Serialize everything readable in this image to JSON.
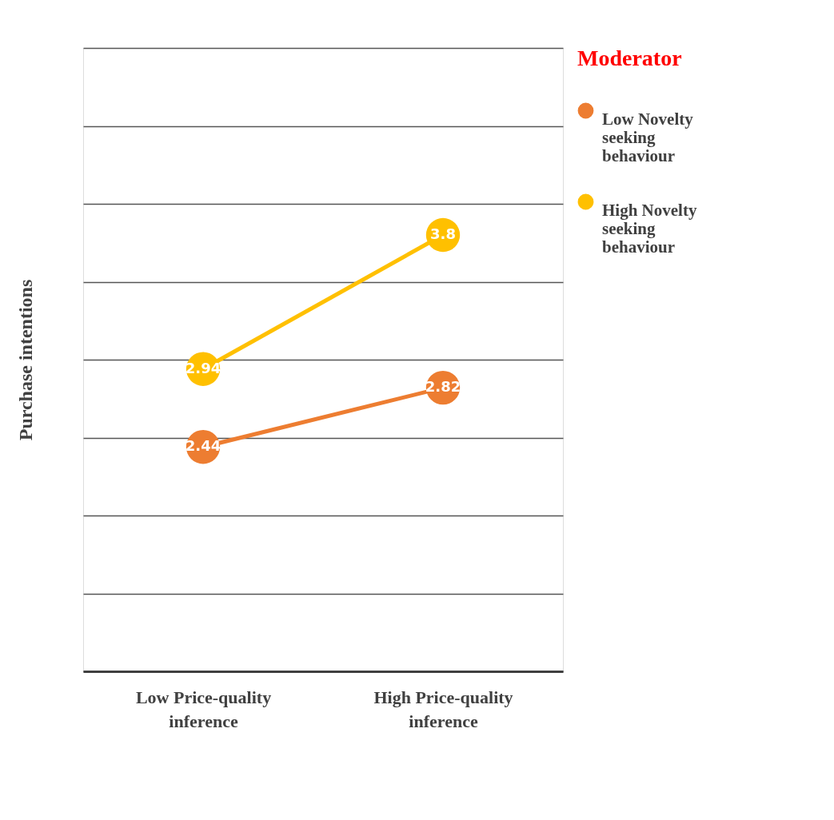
{
  "chart_data": {
    "type": "line",
    "ylabel": "Purchase intentions",
    "legend_title": "Moderator",
    "categories": [
      "Low Price-quality inference",
      "High Price-quality inference"
    ],
    "series": [
      {
        "name": "Low Novelty seeking behaviour",
        "color": "#ed7d31",
        "values": [
          2.44,
          2.82
        ]
      },
      {
        "name": "High Novelty seeking behaviour",
        "color": "#ffc000",
        "values": [
          2.94,
          3.8
        ]
      }
    ],
    "ylim": [
      1,
      5
    ],
    "yticks": [
      {
        "value": 1,
        "label": null
      },
      {
        "value": 1.5,
        "label": null
      },
      {
        "value": 2,
        "label": null
      },
      {
        "value": 2.5,
        "label": null
      },
      {
        "value": 3,
        "label": null
      },
      {
        "value": 3.5,
        "label": null
      },
      {
        "value": 4,
        "label": null
      },
      {
        "value": 4.5,
        "label": null
      },
      {
        "value": 5,
        "label": null
      }
    ],
    "tick_labels": "x",
    "grid": "y",
    "legend": "right",
    "marker": "circle",
    "line_style": "solid",
    "data_labels": true
  }
}
